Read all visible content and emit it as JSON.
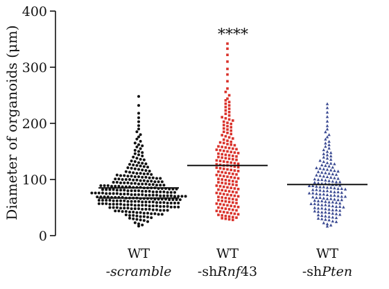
{
  "chart_data": {
    "type": "scatter",
    "subtype": "dot-plot",
    "title": "",
    "xlabel": "",
    "ylabel": "Diameter of organoids (μm)",
    "ylim": [
      0,
      400
    ],
    "yticks": [
      "0",
      "100",
      "200",
      "300",
      "400"
    ],
    "grid": false,
    "legend": "none",
    "categories": [
      {
        "line1": "WT",
        "line2_prefix": "-",
        "line2_italic": "scramble",
        "line2_suffix": ""
      },
      {
        "line1": "WT",
        "line2_prefix": "-sh",
        "line2_italic": "Rnf",
        "line2_suffix": "43"
      },
      {
        "line1": "WT",
        "line2_prefix": "-sh",
        "line2_italic": "Pten",
        "line2_suffix": ""
      }
    ],
    "series": [
      {
        "marker": "circle",
        "color": "#111111",
        "median_lines": [
          85,
          67
        ],
        "max_value": 248,
        "annotation": "",
        "values": [
          248,
          232,
          218,
          210,
          203,
          196,
          190,
          185,
          180,
          176,
          172,
          168,
          165,
          162,
          160,
          158,
          155,
          152,
          150,
          148,
          146,
          144,
          142,
          140,
          138,
          136,
          135,
          133,
          132,
          130,
          129,
          128,
          127,
          126,
          125,
          124,
          123,
          122,
          121,
          120,
          119,
          118,
          117,
          116,
          115,
          114,
          113,
          112,
          111,
          111,
          110,
          110,
          109,
          108,
          107,
          107,
          106,
          106,
          105,
          105,
          104,
          104,
          103,
          103,
          102,
          102,
          101,
          101,
          100,
          100,
          100,
          99,
          99,
          98,
          98,
          97,
          97,
          96,
          96,
          96,
          95,
          95,
          94,
          94,
          94,
          93,
          93,
          92,
          92,
          92,
          91,
          91,
          90,
          90,
          90,
          89,
          89,
          89,
          88,
          88,
          88,
          87,
          87,
          87,
          86,
          86,
          86,
          85,
          85,
          85,
          85,
          84,
          84,
          84,
          83,
          83,
          83,
          82,
          82,
          82,
          82,
          81,
          81,
          81,
          80,
          80,
          80,
          80,
          79,
          79,
          79,
          78,
          78,
          78,
          78,
          77,
          77,
          77,
          76,
          76,
          76,
          76,
          75,
          75,
          75,
          75,
          74,
          74,
          74,
          73,
          73,
          73,
          73,
          72,
          72,
          72,
          72,
          71,
          71,
          71,
          71,
          70,
          70,
          70,
          70,
          69,
          69,
          69,
          69,
          68,
          68,
          68,
          68,
          67,
          67,
          67,
          67,
          66,
          66,
          66,
          66,
          65,
          65,
          65,
          65,
          64,
          64,
          64,
          64,
          63,
          63,
          63,
          63,
          62,
          62,
          62,
          62,
          61,
          61,
          61,
          61,
          60,
          60,
          60,
          60,
          59,
          59,
          59,
          58,
          58,
          58,
          58,
          57,
          57,
          57,
          56,
          56,
          56,
          56,
          55,
          55,
          55,
          54,
          54,
          54,
          54,
          53,
          53,
          53,
          52,
          52,
          52,
          51,
          51,
          51,
          50,
          50,
          50,
          49,
          49,
          49,
          48,
          48,
          48,
          47,
          47,
          47,
          46,
          46,
          45,
          45,
          45,
          44,
          44,
          43,
          43,
          42,
          42,
          41,
          41,
          40,
          40,
          39,
          39,
          38,
          38,
          37,
          36,
          36,
          35,
          34,
          34,
          33,
          32,
          31,
          30,
          29,
          28,
          27,
          25,
          23,
          21,
          19,
          17
        ]
      },
      {
        "marker": "square",
        "color": "#d9322b",
        "median_lines": [
          125
        ],
        "max_value": 342,
        "annotation": "****",
        "values": [
          342,
          333,
          322,
          310,
          297,
          287,
          275,
          262,
          256,
          250,
          244,
          241,
          238,
          235,
          232,
          229,
          226,
          223,
          220,
          217,
          214,
          211,
          209,
          207,
          205,
          203,
          201,
          199,
          197,
          195,
          193,
          191,
          189,
          187,
          185,
          183,
          181,
          179,
          177,
          175,
          173,
          171,
          169,
          167,
          166,
          165,
          163,
          162,
          161,
          159,
          158,
          157,
          156,
          155,
          154,
          153,
          152,
          151,
          150,
          149,
          148,
          147,
          146,
          145,
          144,
          143,
          142,
          141,
          140,
          139,
          138,
          137,
          136,
          135,
          134,
          133,
          132,
          131,
          130,
          129,
          128,
          127,
          126,
          125,
          125,
          124,
          123,
          122,
          121,
          120,
          119,
          118,
          117,
          116,
          115,
          114,
          113,
          112,
          111,
          110,
          109,
          108,
          107,
          106,
          105,
          104,
          103,
          102,
          101,
          100,
          99,
          98,
          97,
          96,
          95,
          94,
          93,
          92,
          91,
          90,
          89,
          88,
          87,
          86,
          85,
          84,
          83,
          82,
          81,
          80,
          79,
          78,
          77,
          76,
          75,
          74,
          73,
          72,
          71,
          70,
          69,
          68,
          67,
          66,
          65,
          64,
          63,
          62,
          61,
          60,
          59,
          58,
          57,
          56,
          55,
          54,
          53,
          52,
          51,
          50,
          49,
          48,
          47,
          46,
          45,
          44,
          43,
          42,
          41,
          40,
          39,
          38,
          37,
          36,
          35,
          34,
          33,
          32,
          31,
          30,
          29,
          28
        ]
      },
      {
        "marker": "triangle",
        "color": "#3b4a92",
        "median_lines": [
          91
        ],
        "max_value": 235,
        "annotation": "",
        "values": [
          235,
          228,
          220,
          212,
          204,
          196,
          190,
          185,
          180,
          176,
          172,
          168,
          165,
          162,
          159,
          156,
          153,
          150,
          148,
          146,
          144,
          142,
          140,
          138,
          136,
          134,
          132,
          130,
          129,
          128,
          126,
          125,
          124,
          122,
          121,
          120,
          119,
          118,
          117,
          116,
          115,
          114,
          113,
          112,
          111,
          110,
          109,
          108,
          107,
          106,
          105,
          104,
          103,
          102,
          101,
          100,
          100,
          99,
          98,
          97,
          96,
          96,
          95,
          94,
          93,
          93,
          92,
          91,
          91,
          90,
          89,
          89,
          88,
          87,
          87,
          86,
          86,
          85,
          84,
          84,
          83,
          82,
          82,
          81,
          80,
          80,
          79,
          78,
          78,
          77,
          76,
          76,
          75,
          74,
          74,
          73,
          72,
          72,
          71,
          70,
          70,
          69,
          68,
          68,
          67,
          66,
          66,
          65,
          64,
          64,
          63,
          62,
          62,
          61,
          60,
          60,
          59,
          58,
          57,
          57,
          56,
          55,
          55,
          54,
          53,
          52,
          52,
          51,
          50,
          49,
          49,
          48,
          47,
          46,
          46,
          45,
          44,
          43,
          42,
          42,
          41,
          40,
          39,
          38,
          37,
          36,
          35,
          34,
          33,
          32,
          31,
          30,
          29,
          28,
          26,
          25,
          23,
          21,
          19,
          17
        ]
      }
    ]
  }
}
